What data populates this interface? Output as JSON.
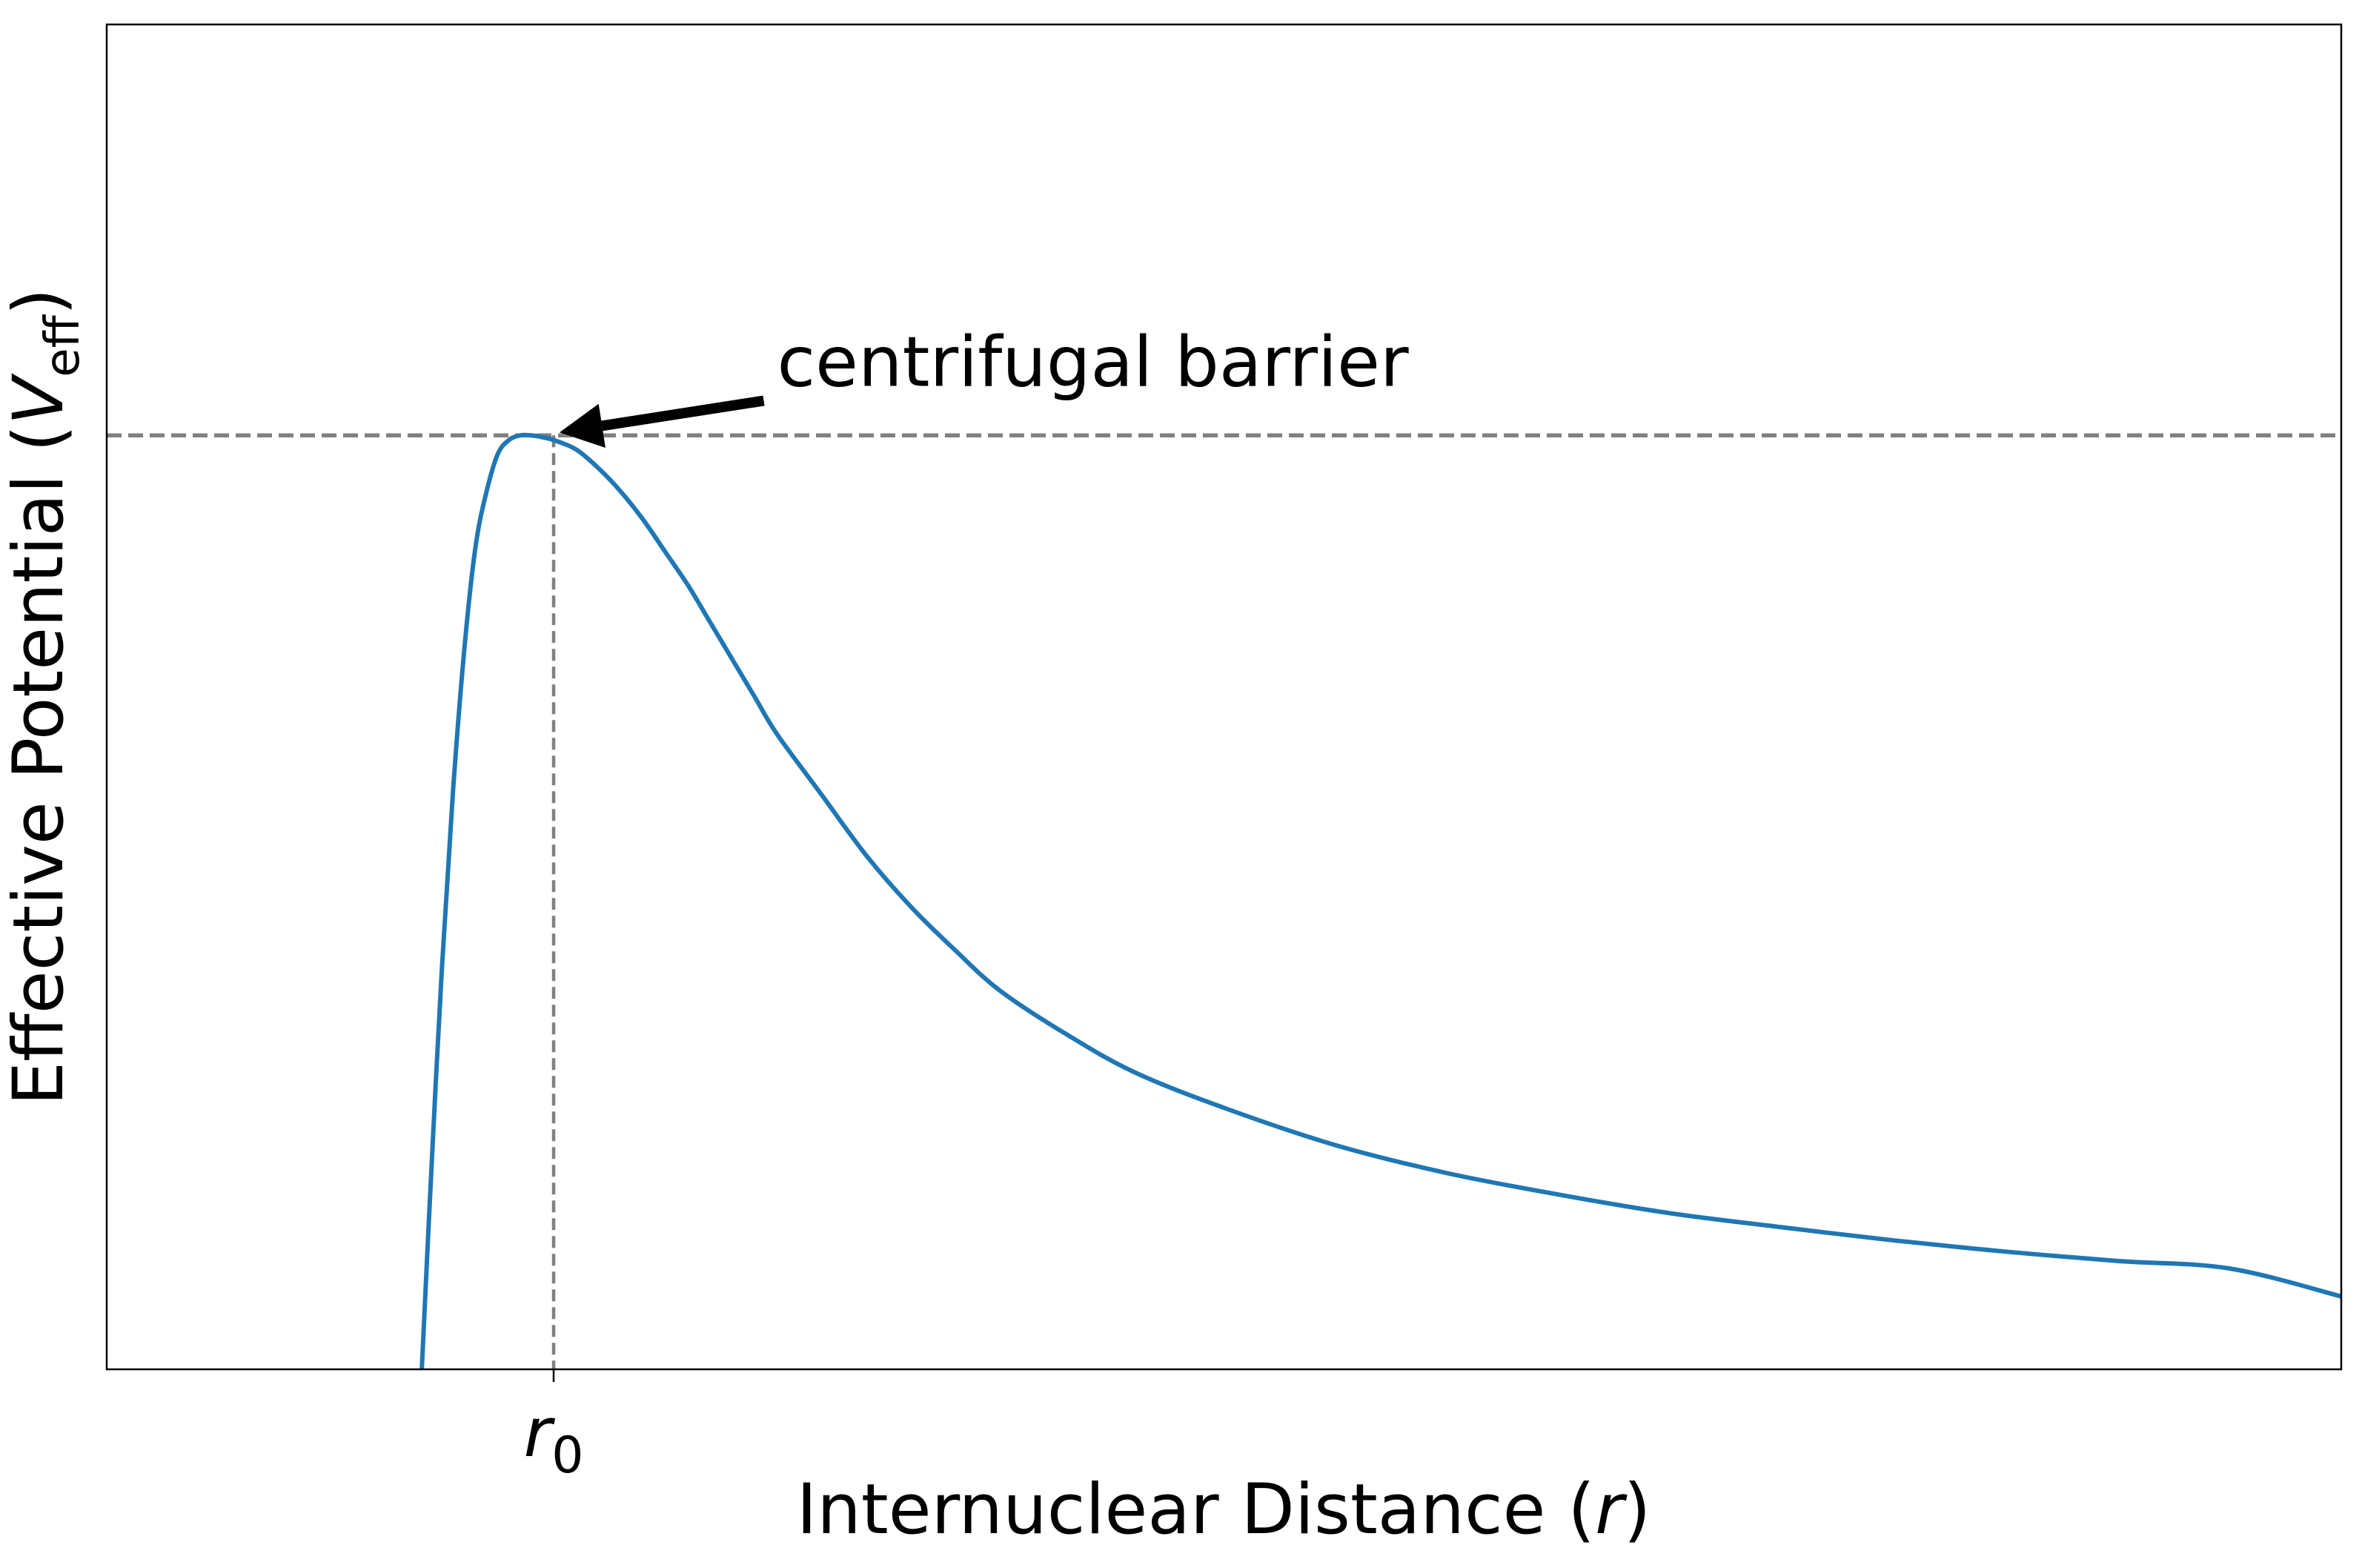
{
  "chart_data": {
    "type": "line",
    "xlabel": "Internuclear Distance",
    "xlabel_symbol": "r",
    "ylabel": "Effective Potential",
    "ylabel_symbol": "V",
    "ylabel_subscript": "eff",
    "xlim": [
      0,
      10
    ],
    "ylim": [
      0,
      1.44
    ],
    "x_ticks": [
      {
        "value": 2,
        "symbol": "r",
        "subscript": "0"
      }
    ],
    "y_ticks": [],
    "grid": false,
    "legend": "none",
    "series": [
      {
        "color": "#1f77b4",
        "x": [
          1.41,
          1.45,
          1.5,
          1.55,
          1.6,
          1.65,
          1.7,
          1.75,
          1.8,
          1.85,
          1.9,
          1.95,
          2.0,
          2.1,
          2.2,
          2.3,
          2.4,
          2.5,
          2.6,
          2.7,
          2.8,
          2.9,
          3.0,
          3.2,
          3.4,
          3.6,
          3.8,
          4.0,
          4.3,
          4.6,
          5.0,
          5.5,
          6.0,
          6.5,
          7.0,
          7.5,
          8.0,
          8.5,
          9.0,
          9.5,
          10.0
        ],
        "y": [
          0.0,
          0.2,
          0.43,
          0.62,
          0.77,
          0.88,
          0.94,
          0.98,
          0.995,
          1.0,
          1.0,
          0.998,
          0.995,
          0.985,
          0.965,
          0.94,
          0.91,
          0.875,
          0.84,
          0.8,
          0.76,
          0.72,
          0.68,
          0.615,
          0.55,
          0.495,
          0.448,
          0.405,
          0.358,
          0.318,
          0.28,
          0.24,
          0.21,
          0.187,
          0.167,
          0.152,
          0.138,
          0.126,
          0.116,
          0.108,
          0.078
        ]
      }
    ],
    "reference_lines": [
      {
        "orientation": "horizontal",
        "y": 1.0,
        "color": "#808080"
      },
      {
        "orientation": "vertical",
        "x": 2,
        "y_top": 1.0,
        "color": "#808080"
      }
    ],
    "annotations": [
      {
        "text": "centrifugal barrier",
        "target_x": 2.0,
        "target_y": 1.0,
        "text_x": 3.0,
        "text_y": 1.08
      }
    ]
  }
}
